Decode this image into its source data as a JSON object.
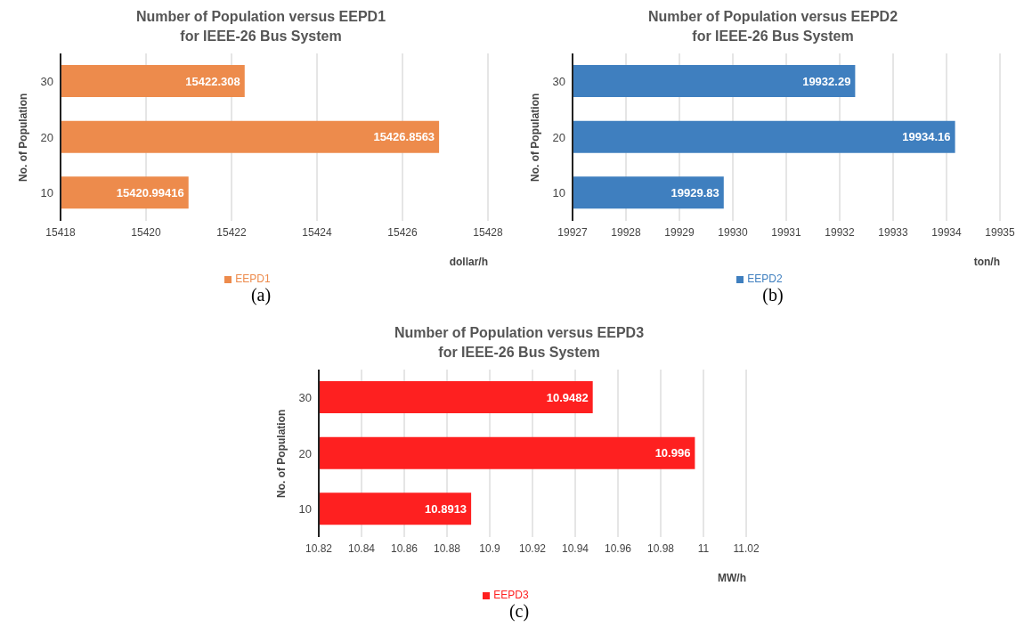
{
  "chart_data": [
    {
      "type": "bar",
      "orientation": "horizontal",
      "title": "Number of Population versus EEPD1\nfor IEEE-26 Bus System",
      "xlabel": "dollar/h",
      "ylabel": "No. of Population",
      "categories": [
        "30",
        "20",
        "10"
      ],
      "series": [
        {
          "name": "EEPD1",
          "color": "#ed8b4c",
          "values": [
            15422.308,
            15426.8563,
            15420.99416
          ]
        }
      ],
      "xlim": [
        15418,
        15428
      ],
      "xticks": [
        15418,
        15420,
        15422,
        15424,
        15426,
        15428
      ],
      "grid": "x",
      "legend": "bottom",
      "data_labels": true,
      "annotations": [
        "(a)"
      ]
    },
    {
      "type": "bar",
      "orientation": "horizontal",
      "title": "Number of Population versus EEPD2\nfor IEEE-26 Bus System",
      "xlabel": "ton/h",
      "ylabel": "No. of Population",
      "categories": [
        "30",
        "20",
        "10"
      ],
      "series": [
        {
          "name": "EEPD2",
          "color": "#3f7fbf",
          "values": [
            19932.29,
            19934.16,
            19929.83
          ]
        }
      ],
      "xlim": [
        19927,
        19935
      ],
      "xticks": [
        19927,
        19928,
        19929,
        19930,
        19931,
        19932,
        19933,
        19934,
        19935
      ],
      "grid": "x",
      "legend": "bottom",
      "data_labels": true,
      "annotations": [
        "(b)"
      ]
    },
    {
      "type": "bar",
      "orientation": "horizontal",
      "title": "Number of Population versus EEPD3\nfor IEEE-26 Bus System",
      "xlabel": "MW/h",
      "ylabel": "No. of Population",
      "categories": [
        "30",
        "20",
        "10"
      ],
      "series": [
        {
          "name": "EEPD3",
          "color": "#fe2020",
          "values": [
            10.9482,
            10.996,
            10.8913
          ]
        }
      ],
      "xlim": [
        10.82,
        11.02
      ],
      "xticks": [
        10.82,
        10.84,
        10.86,
        10.88,
        10.9,
        10.92,
        10.94,
        10.96,
        10.98,
        11,
        11.02
      ],
      "grid": "x",
      "legend": "bottom",
      "data_labels": true,
      "annotations": [
        "(c)"
      ]
    }
  ]
}
